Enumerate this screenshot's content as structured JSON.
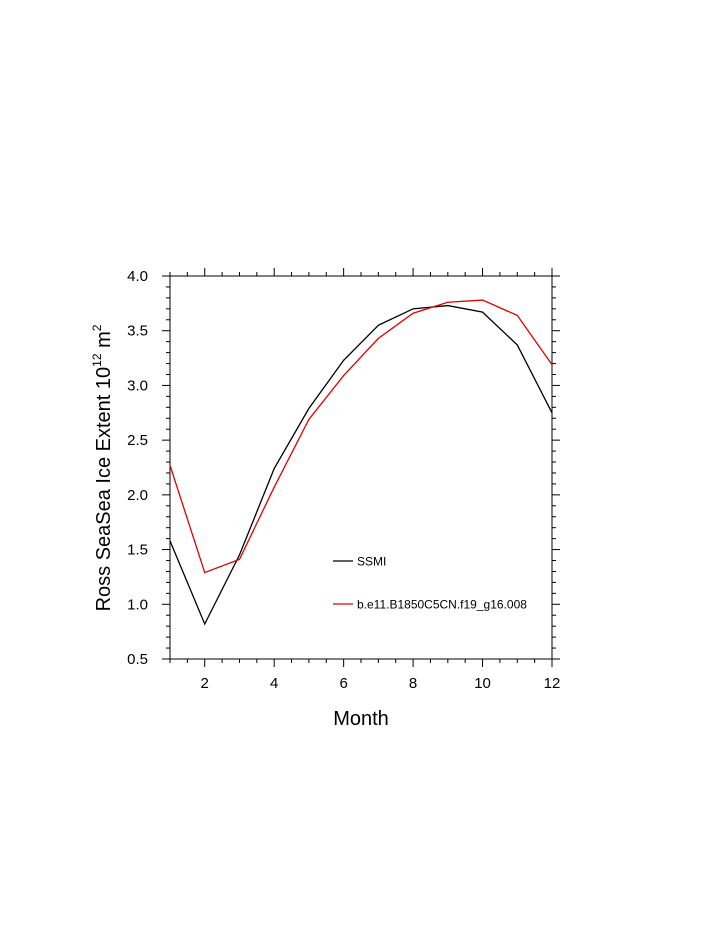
{
  "chart_data": {
    "type": "line",
    "xlabel": "Month",
    "ylabel": {
      "prefix": "Ross SeaSea Ice Extent 10",
      "exp1": "12",
      "mid": " m",
      "exp2": "2"
    },
    "xlim": [
      1,
      12
    ],
    "ylim": [
      0.5,
      4.0
    ],
    "x_ticks": [
      2,
      4,
      6,
      8,
      10,
      12
    ],
    "x_tick_labels": [
      "2",
      "4",
      "6",
      "8",
      "10",
      "12"
    ],
    "y_ticks": [
      0.5,
      1.0,
      1.5,
      2.0,
      2.5,
      3.0,
      3.5,
      4.0
    ],
    "y_tick_labels": [
      "0.5",
      "1.0",
      "1.5",
      "2.0",
      "2.5",
      "3.0",
      "3.5",
      "4.0"
    ],
    "grid": false,
    "legend": "inside-lower-middle",
    "x": [
      1,
      2,
      3,
      4,
      5,
      6,
      7,
      8,
      9,
      10,
      11,
      12
    ],
    "series": [
      {
        "name": "SSMI",
        "color": "#000000",
        "values": [
          1.58,
          0.82,
          1.45,
          2.24,
          2.79,
          3.23,
          3.55,
          3.7,
          3.73,
          3.67,
          3.37,
          2.75
        ]
      },
      {
        "name": "b.e11.B1850C5CN.f19_g16.008",
        "color": "#e00000",
        "values": [
          2.27,
          1.29,
          1.41,
          2.07,
          2.69,
          3.09,
          3.43,
          3.66,
          3.76,
          3.78,
          3.64,
          3.19
        ]
      }
    ]
  }
}
